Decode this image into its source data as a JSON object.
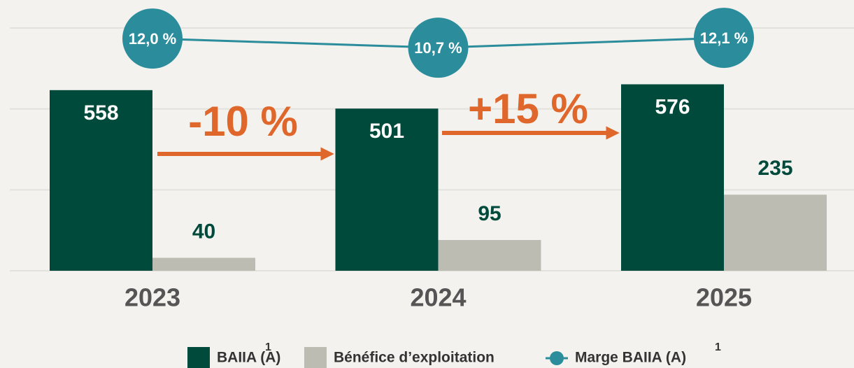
{
  "chart_data": {
    "type": "bar",
    "categories": [
      "2023",
      "2024",
      "2025"
    ],
    "series": [
      {
        "name": "BAIIA (A)",
        "color": "#004a3c",
        "values": [
          558,
          501,
          576
        ]
      },
      {
        "name": "Bénéfice d’exploitation",
        "color": "#bcbcb3",
        "values": [
          40,
          95,
          235
        ]
      },
      {
        "name": "Marge BAIIA (A)",
        "type": "line",
        "axis": "y2",
        "color": "#2b8d9c",
        "values": [
          12.0,
          10.7,
          12.1
        ],
        "value_labels": [
          "12,0 %",
          "10,7 %",
          "12,1 %"
        ]
      }
    ],
    "ylim": [
      0,
      750
    ],
    "yticks": [
      0,
      250,
      500,
      750
    ],
    "y2lim": [
      -21,
      13.5
    ],
    "grid": true,
    "annotations": [
      {
        "text": "-10 %",
        "color": "#e0672b"
      },
      {
        "text": "+15 %",
        "color": "#e0672b"
      }
    ],
    "notes": [
      "1",
      "1"
    ],
    "legend": "bottom"
  }
}
